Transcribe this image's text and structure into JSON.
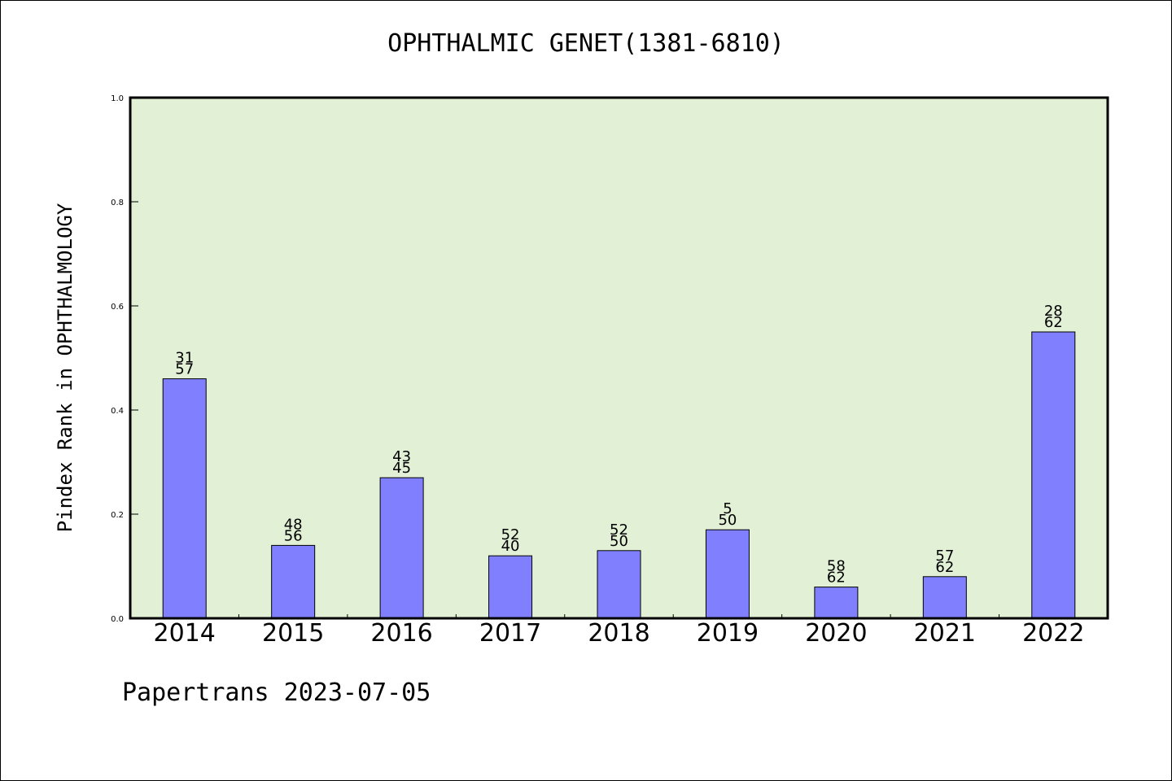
{
  "chart_data": {
    "type": "bar",
    "title": "OPHTHALMIC GENET(1381-6810)",
    "ylabel": "Pindex Rank in OPHTHALMOLOGY",
    "xlabel": "",
    "categories": [
      "2014",
      "2015",
      "2016",
      "2017",
      "2018",
      "2019",
      "2020",
      "2021",
      "2022"
    ],
    "values": [
      0.46,
      0.14,
      0.27,
      0.12,
      0.13,
      0.17,
      0.06,
      0.08,
      0.55
    ],
    "labels_top": [
      "31",
      "48",
      "43",
      "52",
      "52",
      "5",
      "58",
      "57",
      "28"
    ],
    "labels_bottom": [
      "57",
      "56",
      "45",
      "40",
      "50",
      "50",
      "62",
      "62",
      "62"
    ],
    "ylim": [
      0,
      1.0
    ],
    "yticks": [
      "0.0",
      "0.2",
      "0.4",
      "0.6",
      "0.8",
      "1.0"
    ],
    "plot_background": "#e2f0d6",
    "bar_color": "#8080ff",
    "grid": false,
    "legend": "none"
  },
  "footer": "Papertrans 2023-07-05"
}
